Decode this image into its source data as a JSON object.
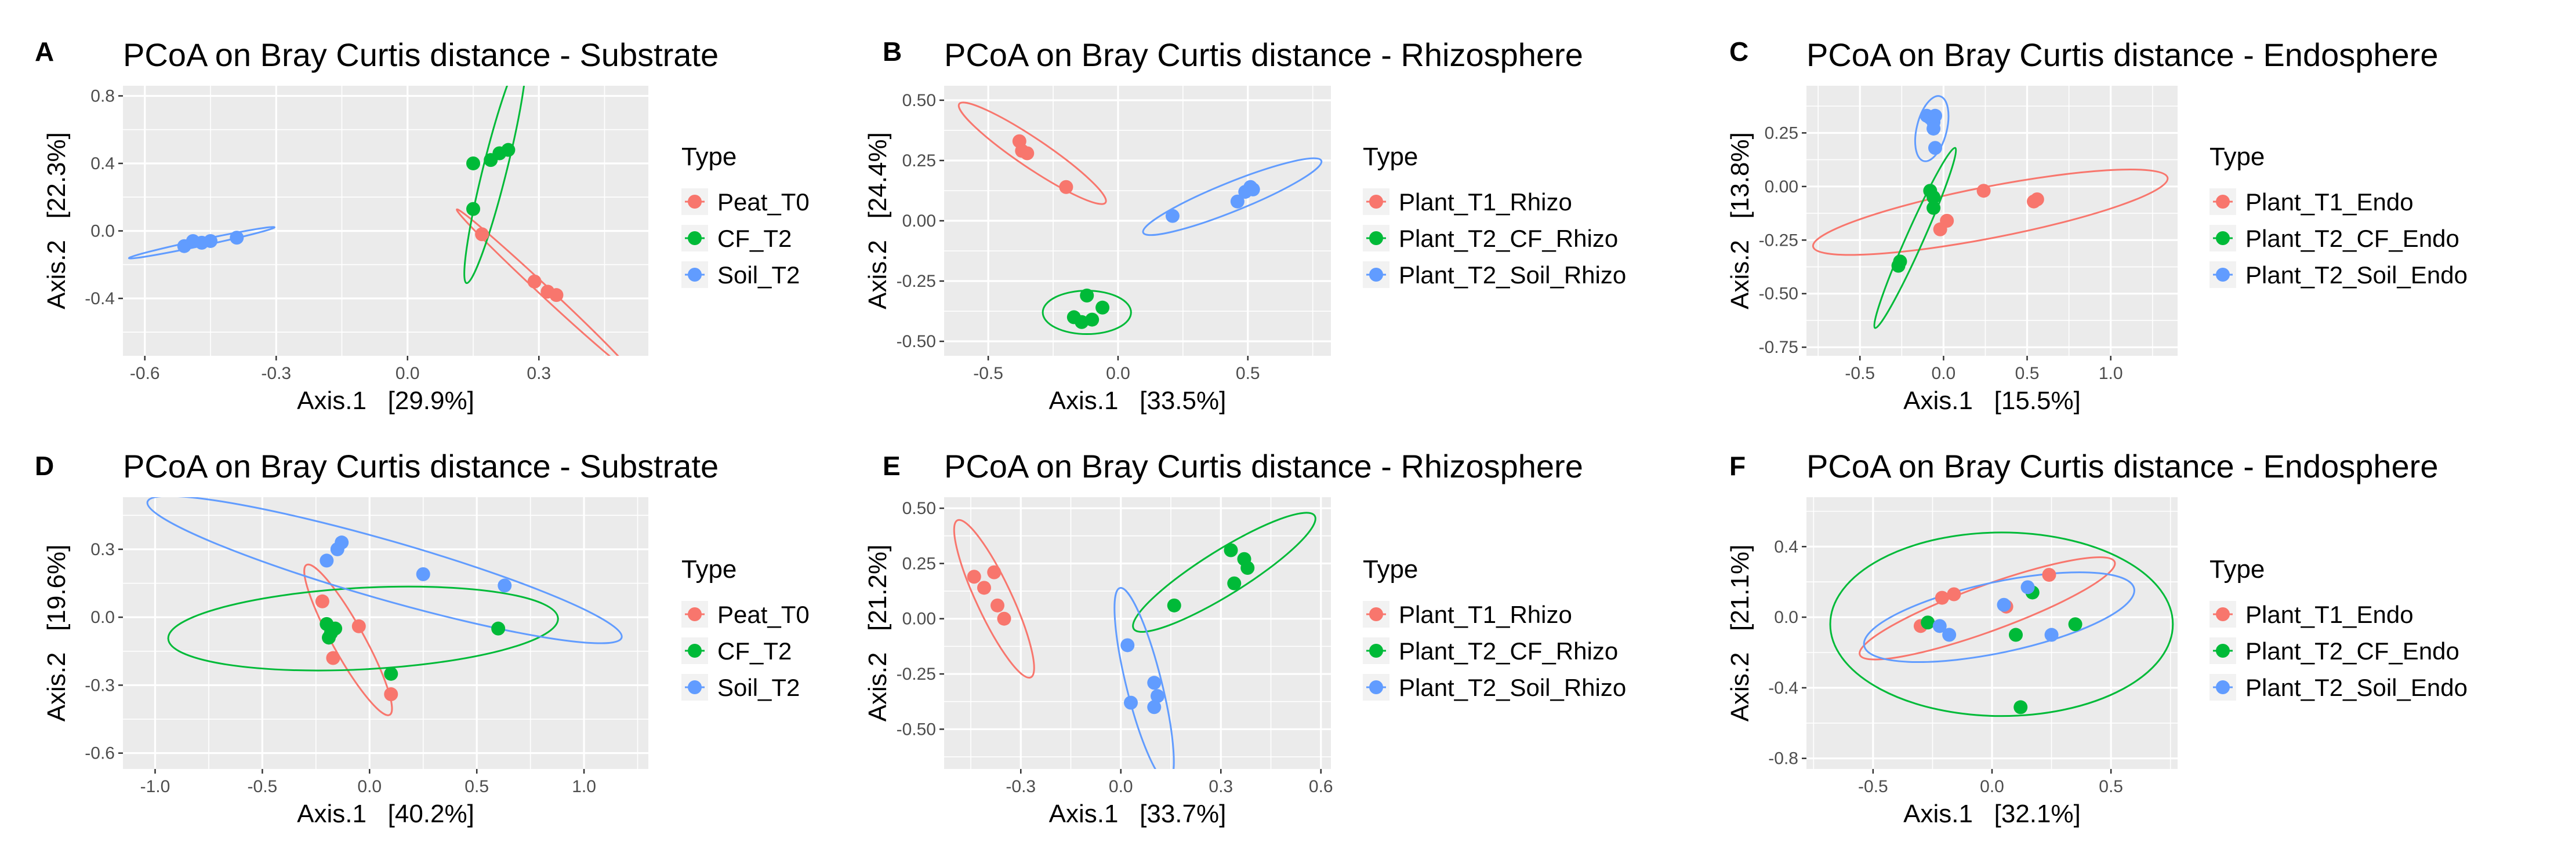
{
  "figure": {
    "grid_lines": true,
    "colors": {
      "panel_background": "#EBEBEB",
      "grid": "#FFFFFF",
      "tick": "#333333",
      "text": "#000000",
      "tick_label": "#4D4D4D"
    }
  },
  "chart_data": [
    {
      "id": "A",
      "type": "scatter",
      "title": "PCoA on Bray Curtis distance - Substrate",
      "xlabel": "Axis.1   [29.9%]",
      "ylabel": "Axis.2   [22.3%]",
      "xlim": [
        -0.65,
        0.55
      ],
      "ylim": [
        -0.74,
        0.86
      ],
      "xticks": [
        -0.6,
        -0.3,
        0.0,
        0.3
      ],
      "xtick_labels": [
        "-0.6",
        "-0.3",
        "0.0",
        "0.3"
      ],
      "yticks": [
        -0.4,
        0.0,
        0.4,
        0.8
      ],
      "ytick_labels": [
        "-0.4",
        "0.0",
        "0.4",
        "0.8"
      ],
      "legend_title": "Type",
      "series": [
        {
          "name": "Peat_T0",
          "color": "#F8766D",
          "points": [
            [
              0.17,
              -0.02
            ],
            [
              0.29,
              -0.3
            ],
            [
              0.32,
              -0.36
            ],
            [
              0.34,
              -0.38
            ]
          ],
          "ellipse": {
            "cx": 0.31,
            "cy": -0.35,
            "rx": 0.27,
            "ry": 0.03,
            "angle_deg": -43
          }
        },
        {
          "name": "CF_T2",
          "color": "#00BA38",
          "points": [
            [
              0.15,
              0.4
            ],
            [
              0.19,
              0.42
            ],
            [
              0.21,
              0.46
            ],
            [
              0.23,
              0.48
            ],
            [
              0.15,
              0.13
            ]
          ],
          "ellipse": {
            "cx": 0.2,
            "cy": 0.37,
            "rx": 0.27,
            "ry": 0.07,
            "angle_deg": 76
          }
        },
        {
          "name": "Soil_T2",
          "color": "#619CFF",
          "points": [
            [
              -0.51,
              -0.09
            ],
            [
              -0.49,
              -0.06
            ],
            [
              -0.47,
              -0.07
            ],
            [
              -0.45,
              -0.06
            ],
            [
              -0.39,
              -0.04
            ]
          ],
          "ellipse": {
            "cx": -0.47,
            "cy": -0.07,
            "rx": 0.17,
            "ry": 0.018,
            "angle_deg": 12
          }
        }
      ]
    },
    {
      "id": "B",
      "type": "scatter",
      "title": "PCoA on Bray Curtis distance - Rhizosphere",
      "xlabel": "Axis.1   [33.5%]",
      "ylabel": "Axis.2   [24.4%]",
      "xlim": [
        -0.67,
        0.82
      ],
      "ylim": [
        -0.56,
        0.56
      ],
      "xticks": [
        -0.5,
        0.0,
        0.5
      ],
      "xtick_labels": [
        "-0.5",
        "0.0",
        "0.5"
      ],
      "yticks": [
        -0.5,
        -0.25,
        0.0,
        0.25,
        0.5
      ],
      "ytick_labels": [
        "-0.50",
        "-0.25",
        "0.00",
        "0.25",
        "0.50"
      ],
      "legend_title": "Type",
      "series": [
        {
          "name": "Plant_T1_Rhizo",
          "color": "#F8766D",
          "points": [
            [
              -0.38,
              0.33
            ],
            [
              -0.37,
              0.29
            ],
            [
              -0.35,
              0.28
            ],
            [
              -0.2,
              0.14
            ]
          ],
          "ellipse": {
            "cx": -0.33,
            "cy": 0.28,
            "rx": 0.34,
            "ry": 0.06,
            "angle_deg": -34
          }
        },
        {
          "name": "Plant_T2_CF_Rhizo",
          "color": "#00BA38",
          "points": [
            [
              -0.12,
              -0.31
            ],
            [
              -0.17,
              -0.4
            ],
            [
              -0.1,
              -0.41
            ],
            [
              -0.14,
              -0.42
            ],
            [
              -0.06,
              -0.36
            ]
          ],
          "ellipse": {
            "cx": -0.12,
            "cy": -0.38,
            "rx": 0.17,
            "ry": 0.09,
            "angle_deg": 0
          }
        },
        {
          "name": "Plant_T2_Soil_Rhizo",
          "color": "#619CFF",
          "points": [
            [
              0.21,
              0.02
            ],
            [
              0.46,
              0.08
            ],
            [
              0.49,
              0.12
            ],
            [
              0.51,
              0.14
            ],
            [
              0.52,
              0.13
            ]
          ],
          "ellipse": {
            "cx": 0.44,
            "cy": 0.1,
            "rx": 0.37,
            "ry": 0.06,
            "angle_deg": 22
          }
        }
      ]
    },
    {
      "id": "C",
      "type": "scatter",
      "title": "PCoA on Bray Curtis distance - Endosphere",
      "xlabel": "Axis.1   [15.5%]",
      "ylabel": "Axis.2   [13.8%]",
      "xlim": [
        -0.82,
        1.4
      ],
      "ylim": [
        -0.79,
        0.47
      ],
      "xticks": [
        -0.5,
        0.0,
        0.5,
        1.0
      ],
      "xtick_labels": [
        "-0.5",
        "0.0",
        "0.5",
        "1.0"
      ],
      "yticks": [
        -0.75,
        -0.5,
        -0.25,
        0.0,
        0.25
      ],
      "ytick_labels": [
        "-0.75",
        "-0.50",
        "-0.25",
        "0.00",
        "0.25"
      ],
      "legend_title": "Type",
      "series": [
        {
          "name": "Plant_T1_Endo",
          "color": "#F8766D",
          "points": [
            [
              0.24,
              -0.02
            ],
            [
              0.54,
              -0.07
            ],
            [
              0.56,
              -0.06
            ],
            [
              0.02,
              -0.16
            ],
            [
              -0.02,
              -0.2
            ]
          ],
          "ellipse": {
            "cx": 0.28,
            "cy": -0.12,
            "rx": 1.08,
            "ry": 0.12,
            "angle_deg": 11
          }
        },
        {
          "name": "Plant_T2_CF_Endo",
          "color": "#00BA38",
          "points": [
            [
              -0.08,
              -0.02
            ],
            [
              -0.06,
              -0.05
            ],
            [
              -0.06,
              -0.1
            ],
            [
              -0.26,
              -0.35
            ],
            [
              -0.27,
              -0.37
            ]
          ],
          "ellipse": {
            "cx": -0.17,
            "cy": -0.24,
            "rx": 0.59,
            "ry": 0.04,
            "angle_deg": 66
          }
        },
        {
          "name": "Plant_T2_Soil_Endo",
          "color": "#619CFF",
          "points": [
            [
              -0.1,
              0.33
            ],
            [
              -0.08,
              0.32
            ],
            [
              -0.06,
              0.3
            ],
            [
              -0.05,
              0.33
            ],
            [
              -0.06,
              0.27
            ],
            [
              -0.05,
              0.18
            ]
          ],
          "ellipse": {
            "cx": -0.07,
            "cy": 0.27,
            "rx": 0.2,
            "ry": 0.07,
            "angle_deg": 76
          }
        }
      ]
    },
    {
      "id": "D",
      "type": "scatter",
      "title": "PCoA on Bray Curtis distance - Substrate",
      "xlabel": "Axis.1   [40.2%]",
      "ylabel": "Axis.2   [19.6%]",
      "xlim": [
        -1.15,
        1.3
      ],
      "ylim": [
        -0.67,
        0.53
      ],
      "xticks": [
        -1.0,
        -0.5,
        0.0,
        0.5,
        1.0
      ],
      "xtick_labels": [
        "-1.0",
        "-0.5",
        "0.0",
        "0.5",
        "1.0"
      ],
      "yticks": [
        -0.6,
        -0.3,
        0.0,
        0.3
      ],
      "ytick_labels": [
        "-0.6",
        "-0.3",
        "0.0",
        "0.3"
      ],
      "legend_title": "Type",
      "series": [
        {
          "name": "Peat_T0",
          "color": "#F8766D",
          "points": [
            [
              -0.22,
              0.07
            ],
            [
              -0.05,
              -0.04
            ],
            [
              -0.17,
              -0.18
            ],
            [
              0.1,
              -0.34
            ]
          ],
          "ellipse": {
            "cx": -0.1,
            "cy": -0.1,
            "rx": 0.4,
            "ry": 0.07,
            "angle_deg": -61
          }
        },
        {
          "name": "CF_T2",
          "color": "#00BA38",
          "points": [
            [
              -0.2,
              -0.03
            ],
            [
              -0.18,
              -0.07
            ],
            [
              -0.16,
              -0.05
            ],
            [
              -0.19,
              -0.09
            ],
            [
              0.1,
              -0.25
            ],
            [
              0.6,
              -0.05
            ]
          ],
          "ellipse": {
            "cx": -0.03,
            "cy": -0.05,
            "rx": 0.91,
            "ry": 0.18,
            "angle_deg": 3
          }
        },
        {
          "name": "Soil_T2",
          "color": "#619CFF",
          "points": [
            [
              -0.2,
              0.25
            ],
            [
              -0.15,
              0.3
            ],
            [
              -0.13,
              0.33
            ],
            [
              0.25,
              0.19
            ],
            [
              0.63,
              0.14
            ]
          ],
          "ellipse": {
            "cx": 0.07,
            "cy": 0.21,
            "rx": 1.15,
            "ry": 0.13,
            "angle_deg": -16
          }
        }
      ]
    },
    {
      "id": "E",
      "type": "scatter",
      "title": "PCoA on Bray Curtis distance - Rhizosphere",
      "xlabel": "Axis.1   [33.7%]",
      "ylabel": "Axis.2   [21.2%]",
      "xlim": [
        -0.53,
        0.63
      ],
      "ylim": [
        -0.68,
        0.55
      ],
      "xticks": [
        -0.3,
        0.0,
        0.3,
        0.6
      ],
      "xtick_labels": [
        "-0.3",
        "0.0",
        "0.3",
        "0.6"
      ],
      "yticks": [
        -0.5,
        -0.25,
        0.0,
        0.25,
        0.5
      ],
      "ytick_labels": [
        "-0.50",
        "-0.25",
        "0.00",
        "0.25",
        "0.50"
      ],
      "legend_title": "Type",
      "series": [
        {
          "name": "Plant_T1_Rhizo",
          "color": "#F8766D",
          "points": [
            [
              -0.44,
              0.19
            ],
            [
              -0.38,
              0.21
            ],
            [
              -0.41,
              0.14
            ],
            [
              -0.37,
              0.06
            ],
            [
              -0.35,
              0.0
            ]
          ],
          "ellipse": {
            "cx": -0.38,
            "cy": 0.09,
            "rx": 0.26,
            "ry": 0.08,
            "angle_deg": -65
          }
        },
        {
          "name": "Plant_T2_CF_Rhizo",
          "color": "#00BA38",
          "points": [
            [
              0.16,
              0.06
            ],
            [
              0.33,
              0.31
            ],
            [
              0.37,
              0.27
            ],
            [
              0.38,
              0.23
            ],
            [
              0.34,
              0.16
            ]
          ],
          "ellipse": {
            "cx": 0.31,
            "cy": 0.21,
            "rx": 0.32,
            "ry": 0.1,
            "angle_deg": 32
          }
        },
        {
          "name": "Plant_T2_Soil_Rhizo",
          "color": "#619CFF",
          "points": [
            [
              0.02,
              -0.12
            ],
            [
              0.1,
              -0.29
            ],
            [
              0.11,
              -0.35
            ],
            [
              0.03,
              -0.38
            ],
            [
              0.1,
              -0.4
            ]
          ],
          "ellipse": {
            "cx": 0.07,
            "cy": -0.3,
            "rx": 0.3,
            "ry": 0.08,
            "angle_deg": -76
          }
        }
      ]
    },
    {
      "id": "F",
      "type": "scatter",
      "title": "PCoA on Bray Curtis distance - Endosphere",
      "xlabel": "Axis.1   [32.1%]",
      "ylabel": "Axis.2   [21.1%]",
      "xlim": [
        -0.78,
        0.78
      ],
      "ylim": [
        -0.86,
        0.68
      ],
      "xticks": [
        -0.5,
        0.0,
        0.5
      ],
      "xtick_labels": [
        "-0.5",
        "0.0",
        "0.5"
      ],
      "yticks": [
        -0.8,
        -0.4,
        0.0,
        0.4
      ],
      "ytick_labels": [
        "-0.8",
        "-0.4",
        "0.0",
        "0.4"
      ],
      "legend_title": "Type",
      "series": [
        {
          "name": "Plant_T1_Endo",
          "color": "#F8766D",
          "points": [
            [
              -0.3,
              -0.05
            ],
            [
              -0.21,
              0.11
            ],
            [
              -0.16,
              0.13
            ],
            [
              0.06,
              0.06
            ],
            [
              0.24,
              0.24
            ]
          ],
          "ellipse": {
            "cx": -0.02,
            "cy": 0.05,
            "rx": 0.57,
            "ry": 0.13,
            "angle_deg": 20
          }
        },
        {
          "name": "Plant_T2_CF_Endo",
          "color": "#00BA38",
          "points": [
            [
              -0.27,
              -0.03
            ],
            [
              0.1,
              -0.1
            ],
            [
              0.17,
              0.14
            ],
            [
              0.35,
              -0.04
            ],
            [
              0.12,
              -0.51
            ]
          ],
          "ellipse": {
            "cx": 0.04,
            "cy": -0.04,
            "rx": 0.72,
            "ry": 0.52,
            "angle_deg": 0
          }
        },
        {
          "name": "Plant_T2_Soil_Endo",
          "color": "#619CFF",
          "points": [
            [
              -0.22,
              -0.05
            ],
            [
              -0.18,
              -0.1
            ],
            [
              0.05,
              0.07
            ],
            [
              0.15,
              0.17
            ],
            [
              0.25,
              -0.1
            ]
          ],
          "ellipse": {
            "cx": 0.03,
            "cy": 0.0,
            "rx": 0.58,
            "ry": 0.2,
            "angle_deg": 12
          }
        }
      ]
    }
  ]
}
